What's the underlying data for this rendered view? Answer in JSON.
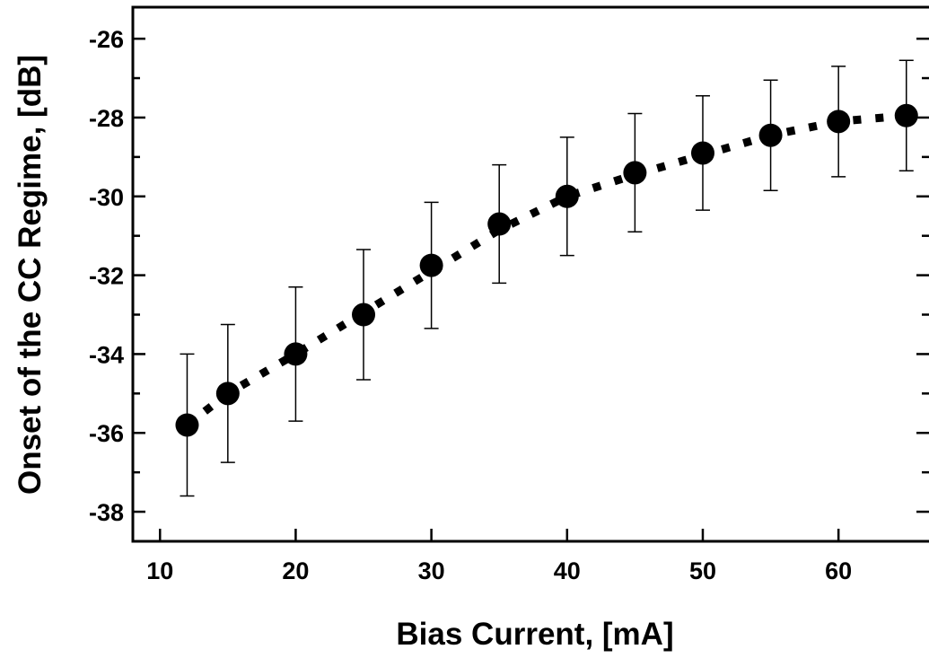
{
  "chart_data": {
    "type": "scatter",
    "xlabel": "Bias Current, [mA]",
    "ylabel": "Onset of the CC Regime, [dB]",
    "xlim": [
      8,
      67
    ],
    "ylim": [
      -38.75,
      -25.2
    ],
    "x_ticks": [
      10,
      20,
      30,
      40,
      50,
      60
    ],
    "x_tick_labels": [
      "10",
      "20",
      "30",
      "40",
      "50",
      "60"
    ],
    "y_ticks": [
      -38,
      -36,
      -34,
      -32,
      -30,
      -28,
      -26
    ],
    "y_tick_labels": [
      "-38",
      "-36",
      "-34",
      "-32",
      "-30",
      "-28",
      "-26"
    ],
    "y_minor_ticks": [
      -37,
      -35,
      -33,
      -31,
      -29,
      -27
    ],
    "grid": false,
    "series": [
      {
        "marker": "filled-circle",
        "color": "#000000",
        "x": [
          12,
          15,
          20,
          25,
          30,
          35,
          40,
          45,
          50,
          55,
          60,
          65
        ],
        "y": [
          -35.8,
          -35.0,
          -34.0,
          -33.0,
          -31.75,
          -30.7,
          -30.0,
          -29.4,
          -28.9,
          -28.45,
          -28.1,
          -27.95
        ],
        "error": [
          1.8,
          1.75,
          1.7,
          1.65,
          1.6,
          1.5,
          1.5,
          1.5,
          1.45,
          1.4,
          1.4,
          1.4
        ]
      }
    ],
    "fit_line": {
      "style": "dotted",
      "color": "#000000",
      "x": [
        12,
        15,
        20,
        25,
        30,
        35,
        40,
        45,
        50,
        55,
        60,
        65
      ],
      "y": [
        -35.8,
        -35.0,
        -34.0,
        -32.95,
        -31.9,
        -30.85,
        -30.0,
        -29.45,
        -28.95,
        -28.45,
        -28.1,
        -27.95
      ]
    }
  }
}
